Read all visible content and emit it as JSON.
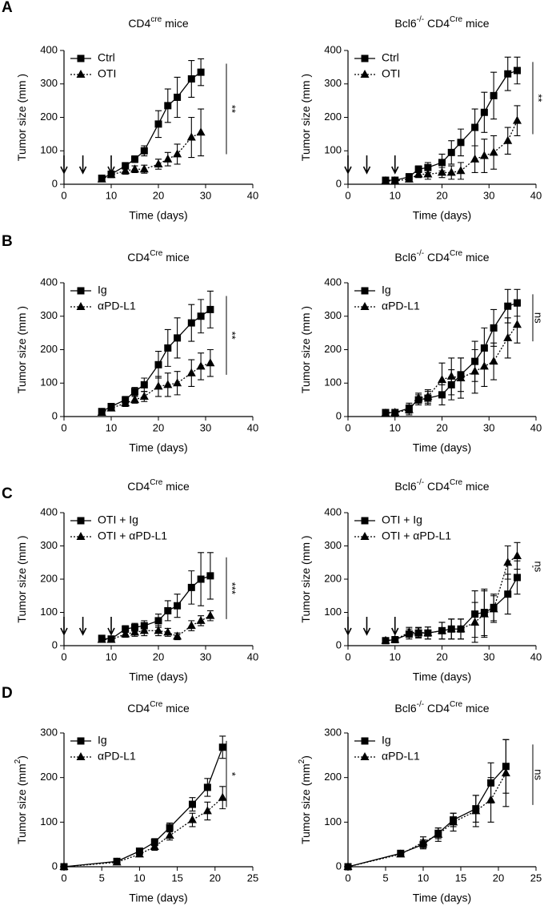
{
  "panel_labels": [
    "A",
    "B",
    "C",
    "D"
  ],
  "chart_data": [
    {
      "type": "line",
      "title": [
        "CD4",
        "cre",
        " mice"
      ],
      "xlabel": "Time (days)",
      "ylabel": [
        "Tumor size (mm ",
        "",
        ")"
      ],
      "x": [
        8,
        10,
        13,
        15,
        17,
        20,
        22,
        24,
        27,
        29
      ],
      "xlim": [
        0,
        40
      ],
      "xticks": [
        0,
        10,
        20,
        30,
        40
      ],
      "ylim": [
        0,
        400
      ],
      "yticks": [
        0,
        100,
        200,
        300,
        400
      ],
      "arrows": [
        0,
        4,
        10
      ],
      "significance": "**",
      "series": [
        {
          "name": "Ctrl",
          "color": "#000000",
          "marker": "square",
          "line_style": "solid",
          "values": [
            18,
            30,
            55,
            75,
            100,
            180,
            235,
            260,
            315,
            335
          ],
          "errors": [
            5,
            8,
            10,
            10,
            15,
            40,
            50,
            60,
            55,
            40
          ]
        },
        {
          "name": "OTI",
          "color": "#000000",
          "marker": "triangle",
          "line_style": "dotted",
          "values": [
            15,
            28,
            40,
            45,
            45,
            60,
            75,
            90,
            140,
            155
          ],
          "errors": [
            5,
            8,
            10,
            10,
            12,
            15,
            20,
            30,
            60,
            70
          ]
        }
      ]
    },
    {
      "type": "line",
      "title": [
        "Bcl6",
        "-/-",
        " CD4",
        "Cre",
        " mice"
      ],
      "xlabel": "Time (days)",
      "ylabel": [
        "Tumor size (mm ",
        "",
        ")"
      ],
      "x": [
        8,
        10,
        13,
        15,
        17,
        20,
        22,
        24,
        27,
        29,
        31,
        34,
        36
      ],
      "xlim": [
        0,
        40
      ],
      "xticks": [
        0,
        10,
        20,
        30,
        40
      ],
      "ylim": [
        0,
        400
      ],
      "yticks": [
        0,
        100,
        200,
        300,
        400
      ],
      "arrows": [
        0,
        4,
        10
      ],
      "significance": "**",
      "series": [
        {
          "name": "Ctrl",
          "color": "#000000",
          "marker": "square",
          "line_style": "solid",
          "values": [
            12,
            12,
            22,
            45,
            50,
            65,
            95,
            125,
            170,
            215,
            265,
            330,
            340
          ],
          "errors": [
            3,
            5,
            10,
            10,
            15,
            25,
            35,
            40,
            55,
            60,
            70,
            50,
            40
          ]
        },
        {
          "name": "OTI",
          "color": "#000000",
          "marker": "triangle",
          "line_style": "dotted",
          "values": [
            10,
            10,
            15,
            30,
            30,
            35,
            35,
            40,
            75,
            85,
            95,
            130,
            190
          ],
          "errors": [
            3,
            5,
            8,
            10,
            15,
            15,
            20,
            25,
            40,
            50,
            50,
            40,
            45
          ]
        }
      ]
    },
    {
      "type": "line",
      "title": [
        "CD4",
        "Cre",
        " mice"
      ],
      "xlabel": "Time (days)",
      "ylabel": [
        "Tumor size (mm ",
        "",
        ")"
      ],
      "x": [
        8,
        10,
        13,
        15,
        17,
        20,
        22,
        24,
        27,
        29,
        31
      ],
      "xlim": [
        0,
        40
      ],
      "xticks": [
        0,
        10,
        20,
        30,
        40
      ],
      "ylim": [
        0,
        400
      ],
      "yticks": [
        0,
        100,
        200,
        300,
        400
      ],
      "significance": "**",
      "series": [
        {
          "name": "Ig",
          "color": "#000000",
          "marker": "square",
          "line_style": "solid",
          "values": [
            15,
            30,
            50,
            75,
            95,
            155,
            205,
            235,
            280,
            300,
            320
          ],
          "errors": [
            5,
            8,
            10,
            12,
            20,
            40,
            55,
            60,
            55,
            50,
            55
          ]
        },
        {
          "name": "αPD-L1",
          "color": "#000000",
          "marker": "triangle",
          "line_style": "dotted",
          "values": [
            12,
            25,
            40,
            50,
            60,
            90,
            95,
            100,
            130,
            150,
            160
          ],
          "errors": [
            5,
            8,
            10,
            10,
            15,
            30,
            35,
            35,
            40,
            40,
            40
          ]
        }
      ]
    },
    {
      "type": "line",
      "title": [
        "Bcl6",
        "-/-",
        " CD4",
        "Cre",
        " mice"
      ],
      "xlabel": "Time (days)",
      "ylabel": [
        "Tumor size (mm ",
        "",
        ")"
      ],
      "x": [
        8,
        10,
        13,
        15,
        17,
        20,
        22,
        24,
        27,
        29,
        31,
        34,
        36
      ],
      "xlim": [
        0,
        40
      ],
      "xticks": [
        0,
        10,
        20,
        30,
        40
      ],
      "ylim": [
        0,
        400
      ],
      "yticks": [
        0,
        100,
        200,
        300,
        400
      ],
      "significance": "ns",
      "series": [
        {
          "name": "Ig",
          "color": "#000000",
          "marker": "square",
          "line_style": "solid",
          "values": [
            12,
            12,
            25,
            50,
            55,
            65,
            95,
            125,
            165,
            205,
            265,
            330,
            340
          ],
          "errors": [
            3,
            5,
            15,
            15,
            20,
            30,
            45,
            50,
            60,
            60,
            55,
            50,
            40
          ]
        },
        {
          "name": "αPD-L1",
          "color": "#000000",
          "marker": "triangle",
          "line_style": "dotted",
          "values": [
            10,
            12,
            20,
            55,
            60,
            110,
            120,
            115,
            135,
            150,
            165,
            235,
            275
          ],
          "errors": [
            3,
            5,
            15,
            15,
            20,
            50,
            55,
            60,
            65,
            60,
            55,
            60,
            55
          ]
        }
      ]
    },
    {
      "type": "line",
      "title": [
        "CD4",
        "Cre",
        " mice"
      ],
      "xlabel": "Time (days)",
      "ylabel": [
        "Tumor size (mm ",
        "",
        ")"
      ],
      "x": [
        8,
        10,
        13,
        15,
        17,
        20,
        22,
        24,
        27,
        29,
        31
      ],
      "xlim": [
        0,
        40
      ],
      "xticks": [
        0,
        10,
        20,
        30,
        40
      ],
      "ylim": [
        0,
        400
      ],
      "yticks": [
        0,
        100,
        200,
        300,
        400
      ],
      "arrows": [
        0,
        4,
        10
      ],
      "significance": "***",
      "series": [
        {
          "name": "OTI + Ig",
          "color": "#000000",
          "marker": "square",
          "line_style": "solid",
          "values": [
            22,
            20,
            50,
            55,
            60,
            75,
            105,
            120,
            175,
            200,
            210
          ],
          "errors": [
            8,
            8,
            10,
            12,
            15,
            20,
            30,
            35,
            50,
            80,
            70
          ]
        },
        {
          "name": "OTI + αPD-L1",
          "color": "#000000",
          "marker": "triangle",
          "line_style": "dotted",
          "values": [
            18,
            18,
            35,
            40,
            45,
            45,
            40,
            28,
            60,
            75,
            90
          ],
          "errors": [
            6,
            6,
            10,
            12,
            15,
            15,
            12,
            10,
            15,
            15,
            15
          ]
        }
      ]
    },
    {
      "type": "line",
      "title": [
        "Bcl6",
        "-/-",
        " CD4",
        "Cre",
        " mice"
      ],
      "xlabel": "Time (days)",
      "ylabel": [
        "Tumor size (mm ",
        "",
        ")"
      ],
      "x": [
        8,
        10,
        13,
        15,
        17,
        20,
        22,
        24,
        27,
        29,
        31,
        34,
        36
      ],
      "xlim": [
        0,
        40
      ],
      "xticks": [
        0,
        10,
        20,
        30,
        40
      ],
      "ylim": [
        0,
        400
      ],
      "yticks": [
        0,
        100,
        200,
        300,
        400
      ],
      "arrows": [
        0,
        4,
        10
      ],
      "significance": "ns",
      "series": [
        {
          "name": "OTI + Ig",
          "color": "#000000",
          "marker": "square",
          "line_style": "solid",
          "values": [
            15,
            18,
            35,
            38,
            38,
            45,
            50,
            50,
            95,
            100,
            115,
            155,
            205
          ],
          "errors": [
            5,
            8,
            15,
            15,
            18,
            25,
            30,
            30,
            70,
            70,
            40,
            60,
            50
          ]
        },
        {
          "name": "OTI + αPD-L1",
          "color": "#000000",
          "marker": "triangle",
          "line_style": "dotted",
          "values": [
            15,
            18,
            40,
            40,
            38,
            45,
            50,
            50,
            70,
            95,
            110,
            250,
            270
          ],
          "errors": [
            5,
            8,
            15,
            15,
            18,
            25,
            30,
            30,
            60,
            70,
            40,
            50,
            40
          ]
        }
      ]
    },
    {
      "type": "line",
      "title": [
        "CD4",
        "Cre",
        " mice"
      ],
      "xlabel": "Time (days)",
      "ylabel": [
        "Tumor size (mm",
        "2",
        ")"
      ],
      "x": [
        0,
        7,
        10,
        12,
        14,
        17,
        19,
        21
      ],
      "xlim": [
        0,
        25
      ],
      "xticks": [
        0,
        5,
        10,
        15,
        20,
        25
      ],
      "ylim": [
        0,
        300
      ],
      "yticks": [
        0,
        100,
        200,
        300
      ],
      "significance": "*",
      "series": [
        {
          "name": "Ig",
          "color": "#000000",
          "marker": "square",
          "line_style": "solid",
          "values": [
            0,
            12,
            35,
            55,
            88,
            140,
            178,
            268
          ],
          "errors": [
            0,
            3,
            5,
            8,
            10,
            15,
            20,
            25
          ]
        },
        {
          "name": "αPD-L1",
          "color": "#000000",
          "marker": "triangle",
          "line_style": "dotted",
          "values": [
            0,
            10,
            28,
            45,
            70,
            105,
            125,
            155
          ],
          "errors": [
            0,
            3,
            5,
            8,
            10,
            15,
            20,
            25
          ]
        }
      ]
    },
    {
      "type": "line",
      "title": [
        "Bcl6",
        "-/-",
        " CD4",
        "Cre",
        " mice"
      ],
      "xlabel": "Time (days)",
      "ylabel": [
        "Tumor size (mm",
        "2",
        ")"
      ],
      "x": [
        0,
        7,
        10,
        12,
        14,
        17,
        19,
        21
      ],
      "xlim": [
        0,
        25
      ],
      "xticks": [
        0,
        5,
        10,
        15,
        20,
        25
      ],
      "ylim": [
        0,
        300
      ],
      "yticks": [
        0,
        100,
        200,
        300
      ],
      "significance": "ns",
      "series": [
        {
          "name": "Ig",
          "color": "#000000",
          "marker": "square",
          "line_style": "solid",
          "values": [
            0,
            30,
            50,
            75,
            105,
            130,
            188,
            225
          ],
          "errors": [
            0,
            5,
            10,
            12,
            15,
            30,
            45,
            60
          ]
        },
        {
          "name": "αPD-L1",
          "color": "#000000",
          "marker": "triangle",
          "line_style": "dotted",
          "values": [
            0,
            28,
            55,
            72,
            100,
            125,
            150,
            210
          ],
          "errors": [
            0,
            5,
            12,
            15,
            20,
            35,
            50,
            75
          ]
        }
      ]
    }
  ]
}
